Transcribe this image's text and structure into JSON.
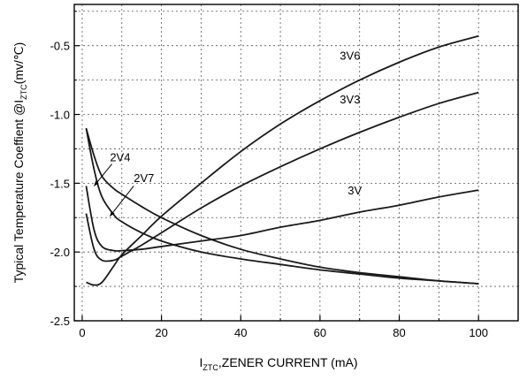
{
  "chart_data": {
    "type": "line",
    "xlabel_main": "I",
    "xlabel_sub": "ZTC",
    "xlabel_rest": ",ZENER CURRENT (mA)",
    "ylabel_main": "Typical Temperature Coeffient @I",
    "ylabel_sub": "ZTC",
    "ylabel_rest": "(mv/℃)",
    "xlim": [
      -2,
      110
    ],
    "ylim": [
      -2.5,
      -0.2
    ],
    "x_ticks": [
      0,
      20,
      40,
      60,
      80,
      100
    ],
    "y_ticks": [
      -0.5,
      -1.0,
      -1.5,
      -2.0,
      -2.5
    ],
    "x_tick_labels": [
      "0",
      "20",
      "40",
      "60",
      "80",
      "100"
    ],
    "y_tick_labels": [
      "-0.5",
      "-1.0",
      "-1.5",
      "-2.0",
      "-2.5"
    ],
    "grid": true,
    "series": [
      {
        "name": "3V6",
        "x": [
          1,
          3,
          5,
          8,
          10,
          15,
          20,
          30,
          40,
          50,
          60,
          70,
          80,
          90,
          100
        ],
        "y": [
          -2.22,
          -2.24,
          -2.22,
          -2.1,
          -2.02,
          -1.88,
          -1.74,
          -1.5,
          -1.27,
          -1.07,
          -0.9,
          -0.75,
          -0.62,
          -0.51,
          -0.43
        ]
      },
      {
        "name": "3V3",
        "x": [
          1,
          3,
          5,
          8,
          10,
          15,
          20,
          30,
          40,
          50,
          60,
          70,
          80,
          90,
          100
        ],
        "y": [
          -1.72,
          -1.98,
          -2.06,
          -2.06,
          -2.03,
          -1.95,
          -1.86,
          -1.68,
          -1.52,
          -1.38,
          -1.25,
          -1.13,
          -1.02,
          -0.92,
          -0.84
        ]
      },
      {
        "name": "3V",
        "x": [
          1,
          3,
          5,
          8,
          10,
          15,
          20,
          30,
          40,
          50,
          60,
          70,
          80,
          90,
          100
        ],
        "y": [
          -1.52,
          -1.84,
          -1.96,
          -1.99,
          -1.99,
          -1.98,
          -1.96,
          -1.92,
          -1.88,
          -1.82,
          -1.77,
          -1.71,
          -1.66,
          -1.6,
          -1.55
        ]
      },
      {
        "name": "2V4",
        "x": [
          1,
          3,
          5,
          8,
          10,
          15,
          20,
          30,
          40,
          50,
          60,
          70,
          80,
          90,
          100
        ],
        "y": [
          -1.1,
          -1.3,
          -1.45,
          -1.54,
          -1.58,
          -1.67,
          -1.75,
          -1.88,
          -1.98,
          -2.05,
          -2.11,
          -2.15,
          -2.18,
          -2.21,
          -2.23
        ]
      },
      {
        "name": "2V7",
        "x": [
          1,
          3,
          5,
          8,
          10,
          15,
          20,
          30,
          40,
          50,
          60,
          70,
          80,
          90,
          100
        ],
        "y": [
          -1.1,
          -1.4,
          -1.6,
          -1.73,
          -1.78,
          -1.86,
          -1.92,
          -2.0,
          -2.05,
          -2.09,
          -2.13,
          -2.16,
          -2.19,
          -2.21,
          -2.23
        ]
      }
    ],
    "annotations": [
      {
        "text": "3V6",
        "x": 65,
        "y": -0.6
      },
      {
        "text": "3V3",
        "x": 65,
        "y": -0.92
      },
      {
        "text": "3V",
        "x": 67,
        "y": -1.58
      },
      {
        "text": "2V4",
        "x": 7,
        "y": -1.34
      },
      {
        "text": "2V7",
        "x": 13,
        "y": -1.49
      }
    ]
  }
}
